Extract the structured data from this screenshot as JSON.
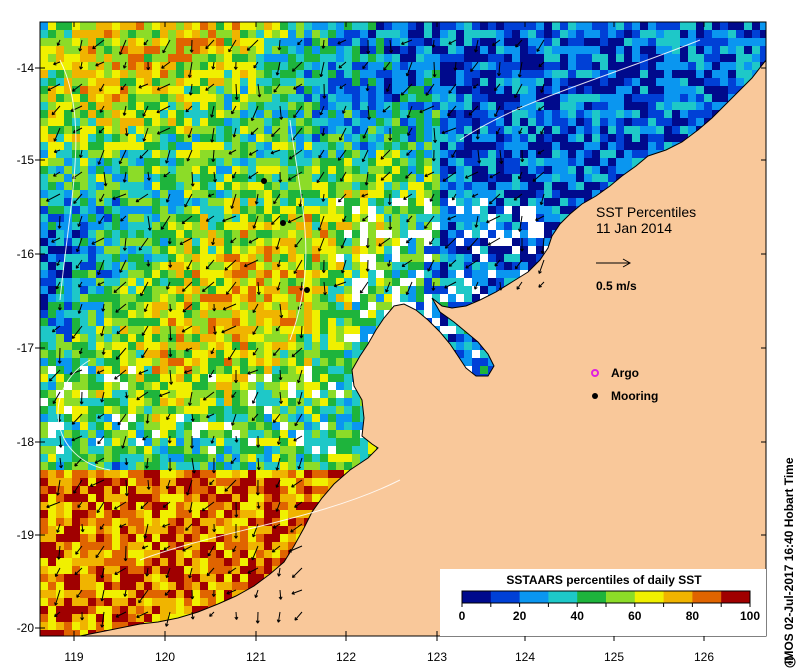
{
  "map": {
    "title_line1": "SST Percentiles",
    "title_line2": "11 Jan 2014",
    "velocity_label": "0.5 m/s",
    "x_ticks": [
      "119",
      "120",
      "121",
      "122",
      "123",
      "124",
      "125",
      "126"
    ],
    "y_ticks": [
      "-14",
      "-15",
      "-16",
      "-17",
      "-18",
      "-19",
      "-20"
    ],
    "legend_markers": [
      {
        "label": "Argo",
        "color": "#e020e0",
        "icon": "argo-ring-icon"
      },
      {
        "label": "Mooring",
        "color": "#000000",
        "icon": "mooring-dot-icon"
      }
    ],
    "land_color": "#f9c89a",
    "mask_color": "#ffffff"
  },
  "colorbar": {
    "title": "SSTAARS percentiles of daily SST",
    "tick_labels": [
      "0",
      "20",
      "40",
      "60",
      "80",
      "100"
    ],
    "colors": [
      "#000a8c",
      "#0040d6",
      "#0a96f0",
      "#1ec8c8",
      "#1eb43c",
      "#8cdc28",
      "#f0f000",
      "#f0b400",
      "#e06400",
      "#a00000"
    ]
  },
  "credit": "IMOS 02-Jul-2017 16:40 Hobart Time"
}
